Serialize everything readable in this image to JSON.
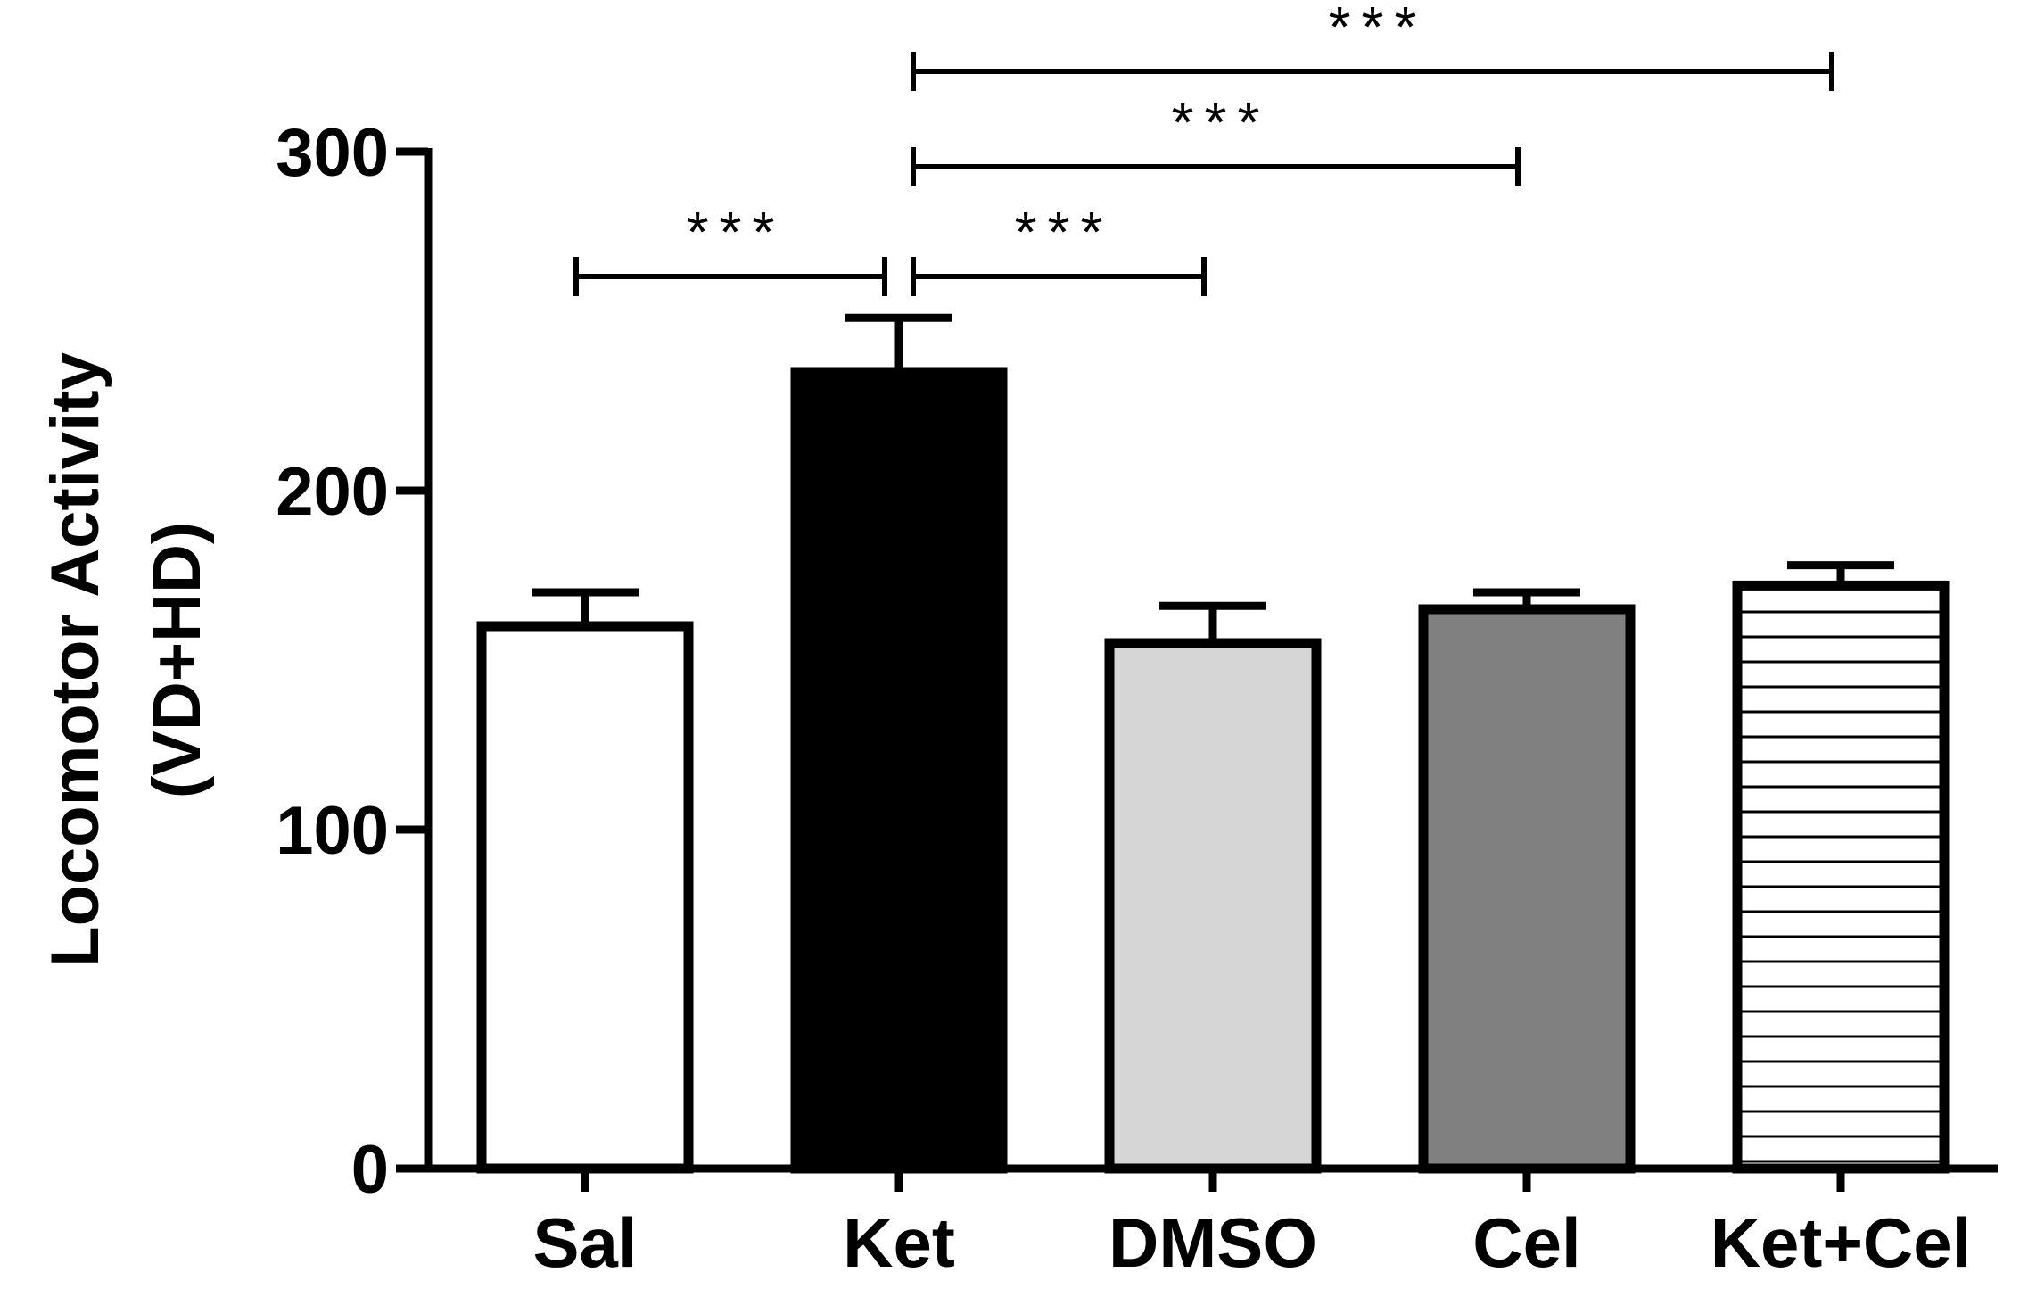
{
  "chart_data": {
    "type": "bar",
    "title": "",
    "xlabel": "",
    "ylabel": [
      "Locomotor Activity",
      "(VD+HD)"
    ],
    "ylim": [
      0,
      300
    ],
    "yticks": [
      0,
      100,
      200,
      300
    ],
    "grid": false,
    "legend": "none",
    "categories": [
      "Sal",
      "Ket",
      "DMSO",
      "Cel",
      "Ket+Cel"
    ],
    "values": [
      160,
      235,
      155,
      165,
      172
    ],
    "errors": [
      10,
      16,
      11,
      5,
      6
    ],
    "bar_fills": [
      "#ffffff",
      "#000000",
      "#d6d6d6",
      "#808080",
      "hatch-horizontal"
    ],
    "significance": [
      {
        "from": "Sal",
        "to": "Ket",
        "label": "***"
      },
      {
        "from": "Ket",
        "to": "DMSO",
        "label": "***"
      },
      {
        "from": "Ket",
        "to": "Cel",
        "label": "***"
      },
      {
        "from": "Ket",
        "to": "Ket+Cel",
        "label": "***"
      }
    ]
  }
}
